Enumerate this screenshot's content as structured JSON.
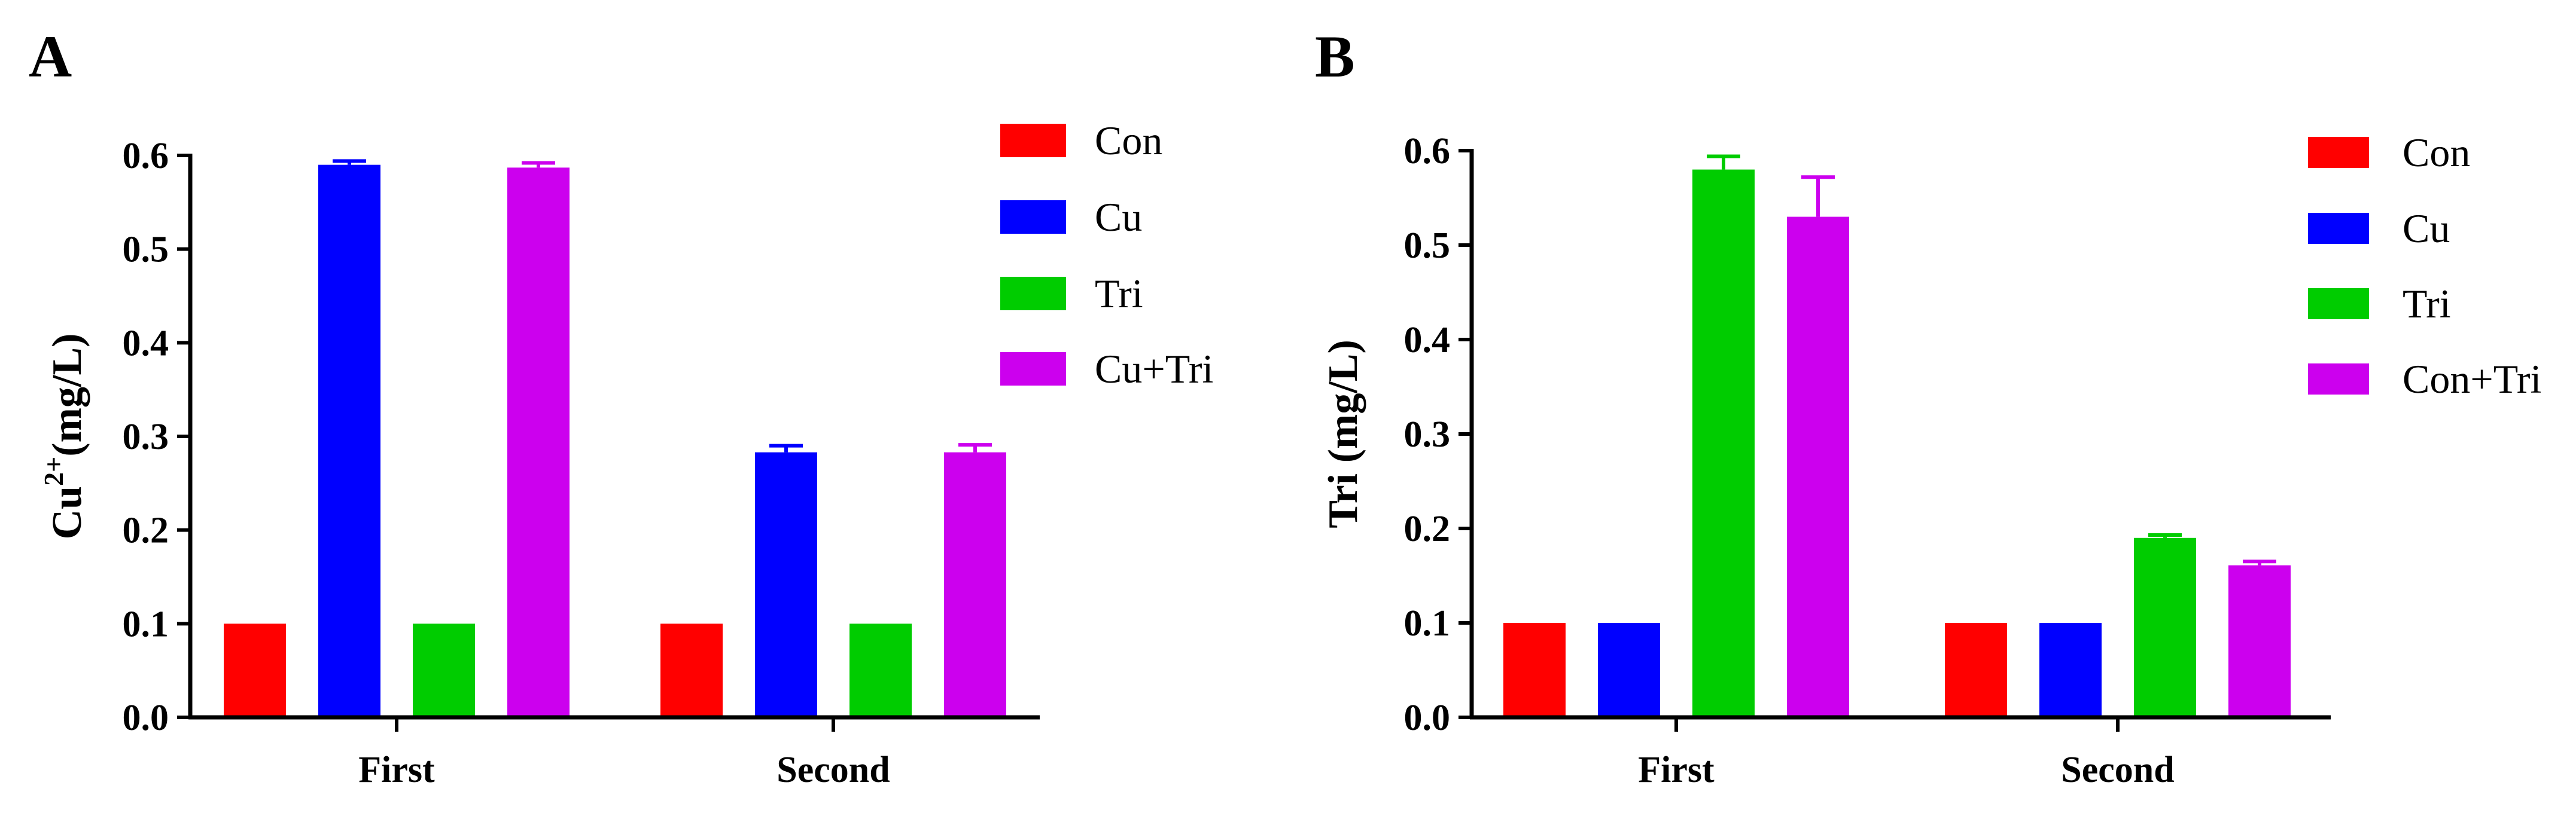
{
  "chart_data": [
    {
      "panel_letter": "A",
      "type": "bar",
      "ylabel_base": "Cu",
      "ylabel_sup": "2+",
      "ylabel_rest": "(mg/L)",
      "xlabel": "",
      "ylim": [
        0,
        0.6
      ],
      "yticks": [
        "0.0",
        "0.1",
        "0.2",
        "0.3",
        "0.4",
        "0.5",
        "0.6"
      ],
      "categories": [
        "First",
        "Second"
      ],
      "series": [
        {
          "name": "Con",
          "color": "#ff0000",
          "values": [
            0.1,
            0.1
          ],
          "errors": [
            0,
            0
          ]
        },
        {
          "name": "Cu",
          "color": "#0000ff",
          "values": [
            0.59,
            0.283
          ],
          "errors": [
            0.004,
            0.007
          ]
        },
        {
          "name": "Tri",
          "color": "#00cc00",
          "values": [
            0.1,
            0.1
          ],
          "errors": [
            0,
            0
          ]
        },
        {
          "name": "Cu+Tri",
          "color": "#cc00ee",
          "values": [
            0.587,
            0.283
          ],
          "errors": [
            0.005,
            0.008
          ]
        }
      ],
      "legend_position": "right"
    },
    {
      "panel_letter": "B",
      "type": "bar",
      "ylabel_base": "Tri (mg/L)",
      "ylabel_sup": "",
      "ylabel_rest": "",
      "xlabel": "",
      "ylim": [
        0,
        0.6
      ],
      "yticks": [
        "0.0",
        "0.1",
        "0.2",
        "0.3",
        "0.4",
        "0.5",
        "0.6"
      ],
      "categories": [
        "First",
        "Second"
      ],
      "series": [
        {
          "name": "Con",
          "color": "#ff0000",
          "values": [
            0.1,
            0.1
          ],
          "errors": [
            0,
            0
          ]
        },
        {
          "name": "Cu",
          "color": "#0000ff",
          "values": [
            0.1,
            0.1
          ],
          "errors": [
            0,
            0
          ]
        },
        {
          "name": "Tri",
          "color": "#00cc00",
          "values": [
            0.58,
            0.19
          ],
          "errors": [
            0.014,
            0.003
          ]
        },
        {
          "name": "Con+Tri",
          "color": "#cc00ee",
          "values": [
            0.53,
            0.161
          ],
          "errors": [
            0.042,
            0.004
          ]
        }
      ],
      "legend_position": "right"
    }
  ]
}
